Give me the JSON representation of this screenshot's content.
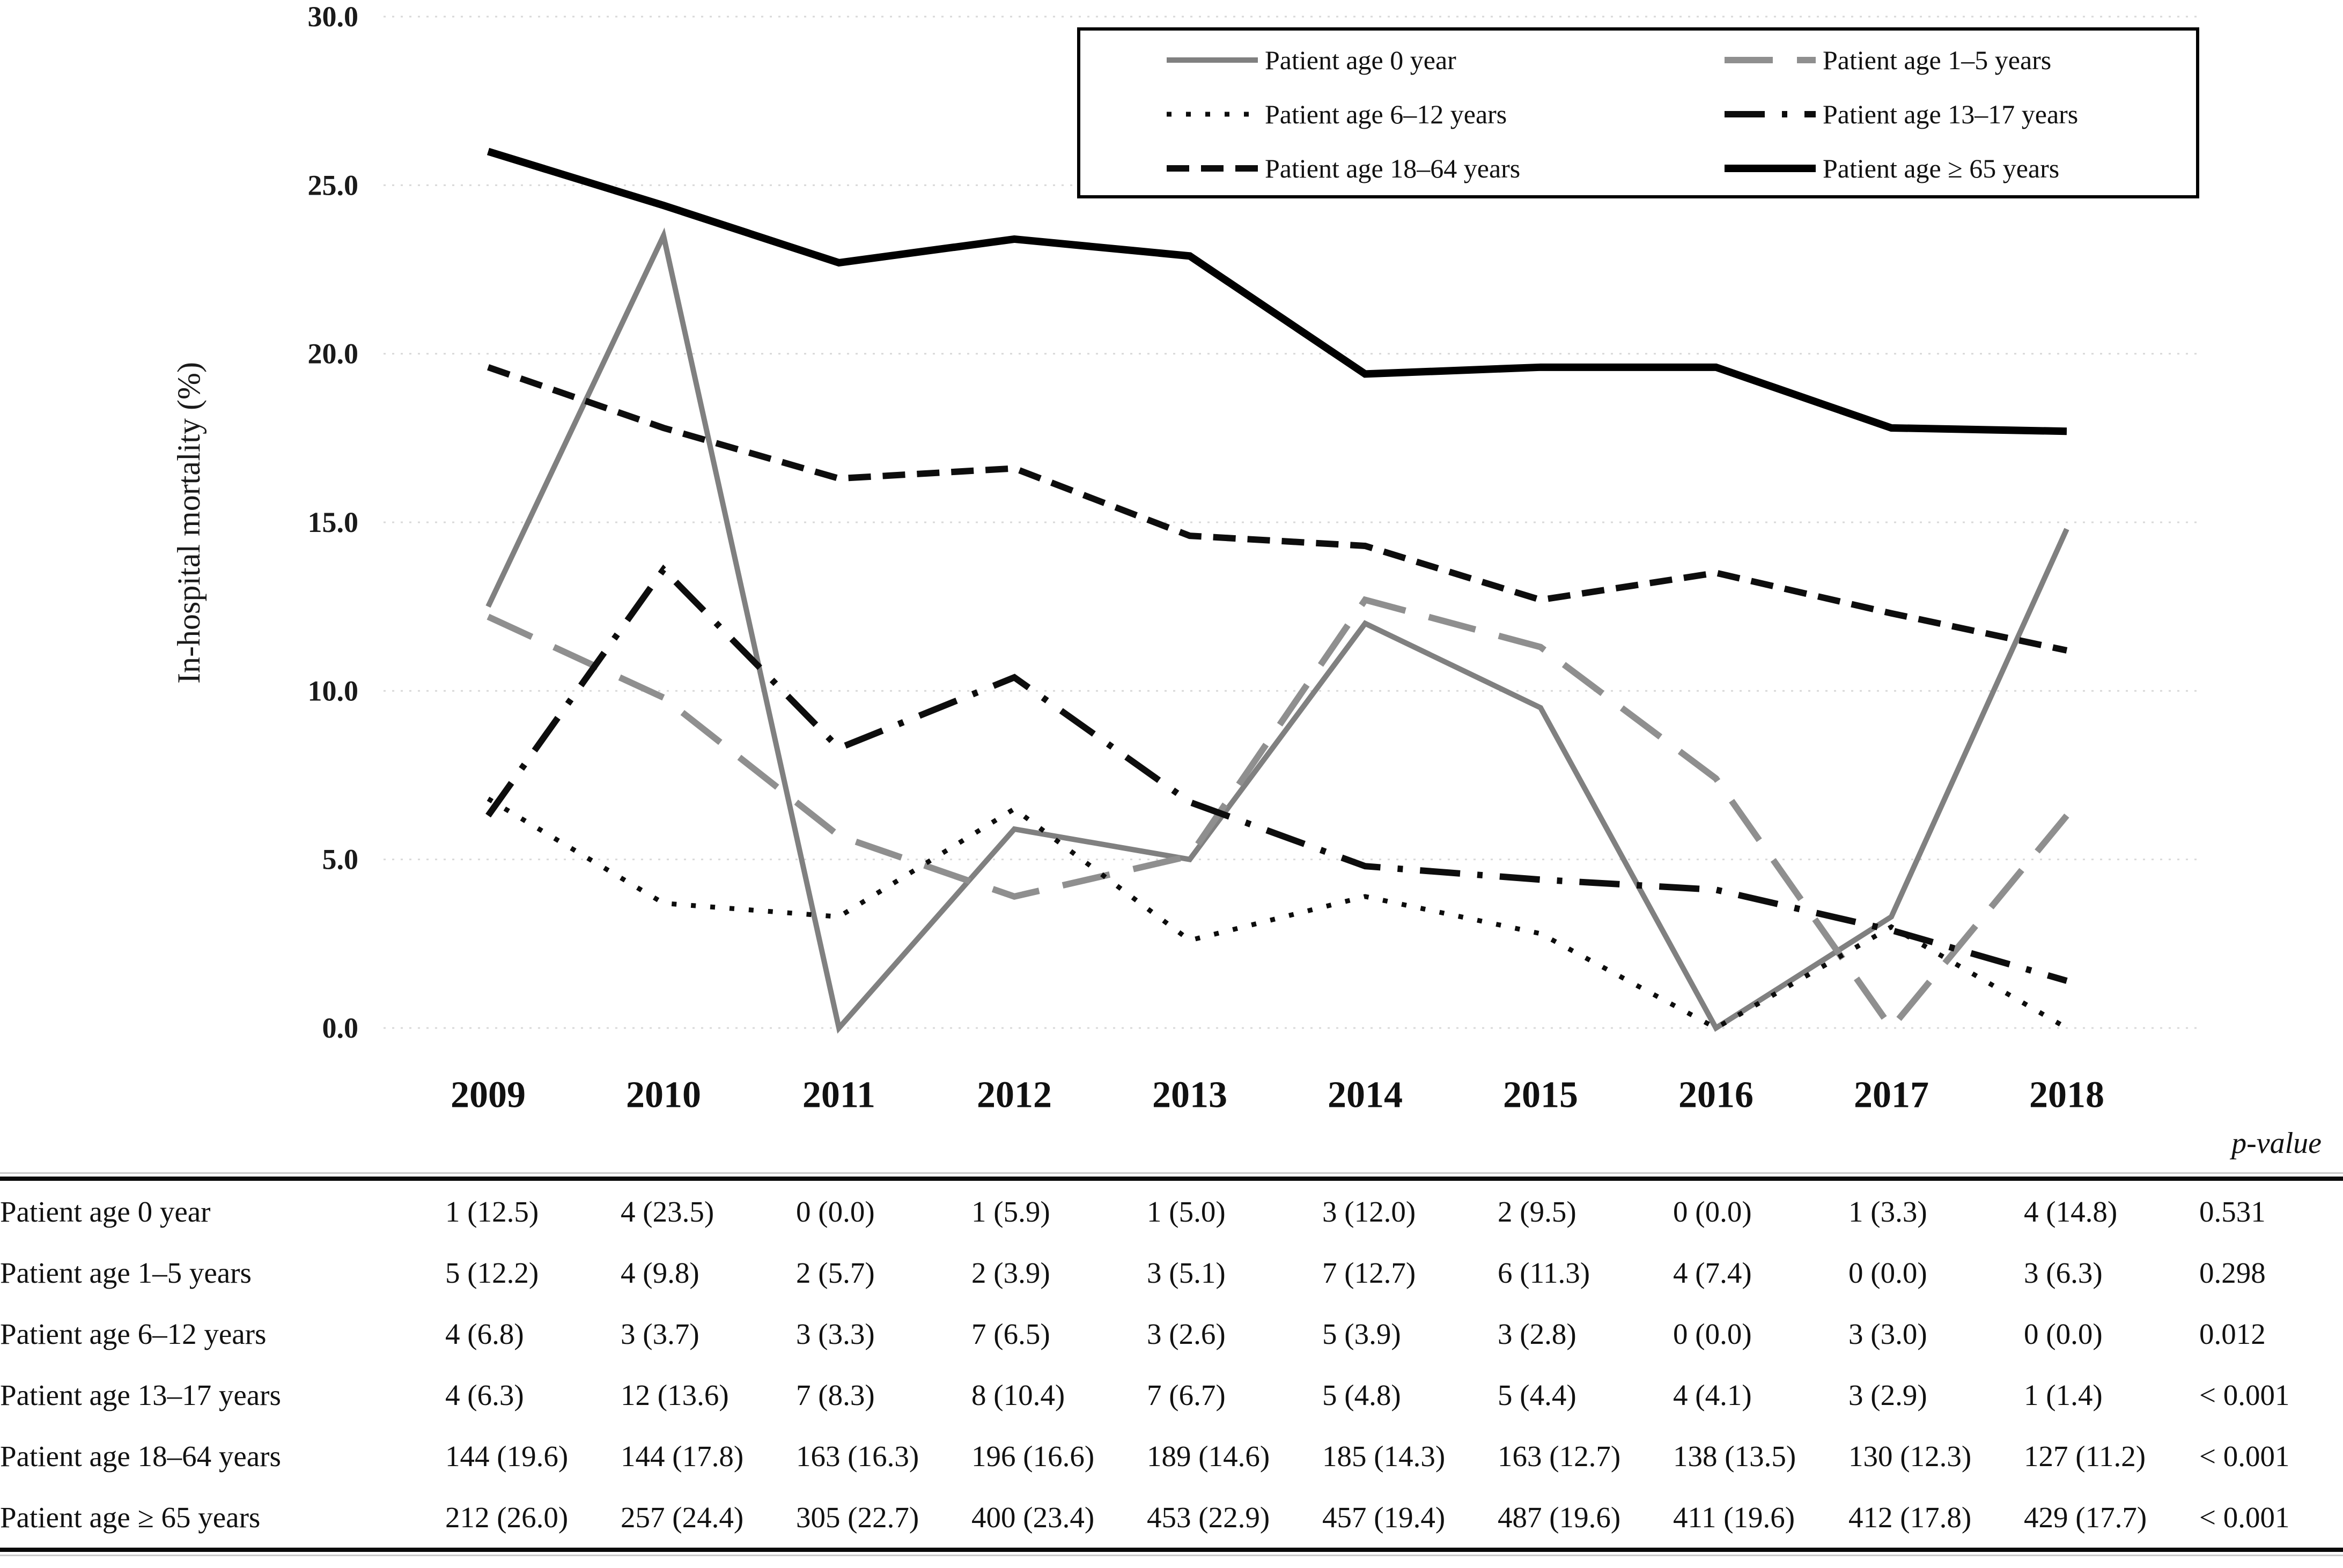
{
  "figure": {
    "p_value_header": "p-value"
  },
  "chart_data": {
    "type": "line",
    "title": "",
    "xlabel": "",
    "ylabel": "In-hospital mortality (%)",
    "x": [
      "2009",
      "2010",
      "2011",
      "2012",
      "2013",
      "2014",
      "2015",
      "2016",
      "2017",
      "2018"
    ],
    "ylim": [
      0,
      30
    ],
    "yticks": [
      "30.0",
      "25.0",
      "20.0",
      "15.0",
      "10.0",
      "5.0",
      "0.0"
    ],
    "grid": "horizontal dotted light-gray",
    "legend_position": "top-right boxed, 2 columns",
    "colors": {
      "gray_series": "#808080",
      "black_series": "#0d0d0d",
      "gridline": "#d9d9d9"
    },
    "series": [
      {
        "name": "Patient age 0 year",
        "style": "solid",
        "color": "#808080",
        "width": 10,
        "values": [
          12.5,
          23.5,
          0.0,
          5.9,
          5.0,
          12.0,
          9.5,
          0.0,
          3.3,
          14.8
        ]
      },
      {
        "name": "Patient age 1–5 years",
        "style": "long-dash",
        "color": "#8f8f8f",
        "width": 12,
        "values": [
          12.2,
          9.8,
          5.7,
          3.9,
          5.1,
          12.7,
          11.3,
          7.4,
          0.0,
          6.3
        ]
      },
      {
        "name": "Patient age 6–12 years",
        "style": "dotted",
        "color": "#0d0d0d",
        "width": 9,
        "values": [
          6.8,
          3.7,
          3.3,
          6.5,
          2.6,
          3.9,
          2.8,
          0.0,
          3.0,
          0.0
        ]
      },
      {
        "name": "Patient age 13–17 years",
        "style": "dash-dot",
        "color": "#0d0d0d",
        "width": 12,
        "values": [
          6.3,
          13.6,
          8.3,
          10.4,
          6.7,
          4.8,
          4.4,
          4.1,
          2.9,
          1.4
        ]
      },
      {
        "name": "Patient age 18–64 years",
        "style": "dash",
        "color": "#0d0d0d",
        "width": 12,
        "values": [
          19.6,
          17.8,
          16.3,
          16.6,
          14.6,
          14.3,
          12.7,
          13.5,
          12.3,
          11.2
        ]
      },
      {
        "name": "Patient age ≥ 65 years",
        "style": "solid",
        "color": "#000000",
        "width": 14,
        "values": [
          26.0,
          24.4,
          22.7,
          23.4,
          22.9,
          19.4,
          19.6,
          19.6,
          17.8,
          17.7
        ]
      }
    ]
  },
  "table": {
    "columns": [
      "2009",
      "2010",
      "2011",
      "2012",
      "2013",
      "2014",
      "2015",
      "2016",
      "2017",
      "2018"
    ],
    "p_value_header": "p-value",
    "rows": [
      {
        "label": "Patient age 0 year",
        "cells": [
          "1 (12.5)",
          "4 (23.5)",
          "0 (0.0)",
          "1 (5.9)",
          "1 (5.0)",
          "3 (12.0)",
          "2 (9.5)",
          "0 (0.0)",
          "1 (3.3)",
          "4 (14.8)"
        ],
        "p": "0.531"
      },
      {
        "label": "Patient age 1–5 years",
        "cells": [
          "5 (12.2)",
          "4 (9.8)",
          "2 (5.7)",
          "2 (3.9)",
          "3 (5.1)",
          "7 (12.7)",
          "6 (11.3)",
          "4 (7.4)",
          "0 (0.0)",
          "3 (6.3)"
        ],
        "p": "0.298"
      },
      {
        "label": "Patient age 6–12 years",
        "cells": [
          "4 (6.8)",
          "3 (3.7)",
          "3 (3.3)",
          "7 (6.5)",
          "3 (2.6)",
          "5 (3.9)",
          "3 (2.8)",
          "0 (0.0)",
          "3 (3.0)",
          "0 (0.0)"
        ],
        "p": "0.012"
      },
      {
        "label": "Patient age 13–17 years",
        "cells": [
          "4 (6.3)",
          "12 (13.6)",
          "7 (8.3)",
          "8 (10.4)",
          "7 (6.7)",
          "5 (4.8)",
          "5 (4.4)",
          "4 (4.1)",
          "3 (2.9)",
          "1 (1.4)"
        ],
        "p": "< 0.001"
      },
      {
        "label": "Patient age 18–64 years",
        "cells": [
          "144 (19.6)",
          "144 (17.8)",
          "163 (16.3)",
          "196 (16.6)",
          "189 (14.6)",
          "185 (14.3)",
          "163 (12.7)",
          "138 (13.5)",
          "130 (12.3)",
          "127 (11.2)"
        ],
        "p": "< 0.001"
      },
      {
        "label": "Patient age ≥ 65 years",
        "cells": [
          "212 (26.0)",
          "257 (24.4)",
          "305 (22.7)",
          "400 (23.4)",
          "453 (22.9)",
          "457 (19.4)",
          "487 (19.6)",
          "411 (19.6)",
          "412 (17.8)",
          "429 (17.7)"
        ],
        "p": "< 0.001"
      }
    ]
  }
}
